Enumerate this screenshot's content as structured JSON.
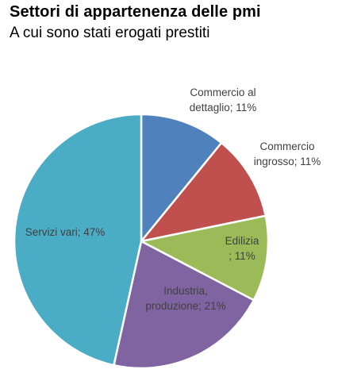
{
  "chart_data": {
    "type": "pie",
    "title": "Settori di appartenenza delle pmi",
    "subtitle": "A cui sono stati erogati prestiti",
    "slices": [
      {
        "name": "Commercio al dettaglio",
        "value": 11,
        "label_lines": [
          "Commercio al",
          "dettaglio; 11%"
        ],
        "color": "#4f81bd"
      },
      {
        "name": "Commercio ingrosso",
        "value": 11,
        "label_lines": [
          "Commercio",
          "ingrosso; 11%"
        ],
        "color": "#c0504d"
      },
      {
        "name": "Edilizia",
        "value": 11,
        "label_lines": [
          "Edilizia",
          "; 11%"
        ],
        "color": "#9bbb59"
      },
      {
        "name": "Industria, produzione",
        "value": 21,
        "label_lines": [
          "Industria,",
          "produzione; 21%"
        ],
        "color": "#8064a2"
      },
      {
        "name": "Servizi vari",
        "value": 47,
        "label_lines": [
          "Servizi vari; 47%"
        ],
        "color": "#4bacc6"
      }
    ],
    "legend": "none"
  }
}
